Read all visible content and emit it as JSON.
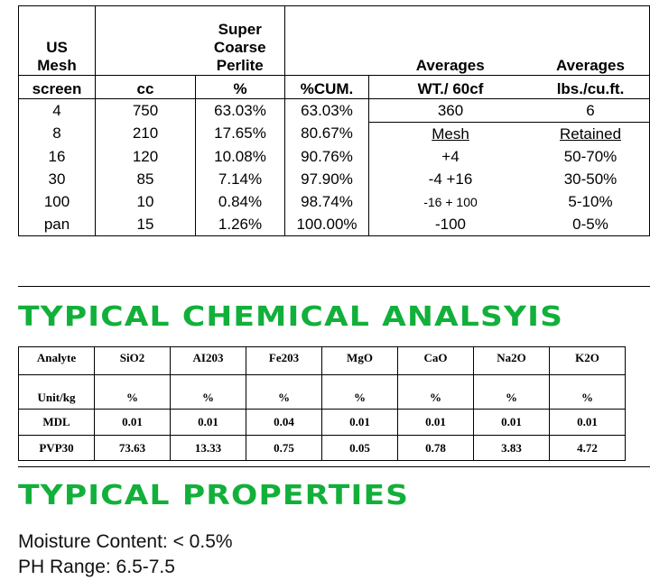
{
  "sieve_table": {
    "header_row1": [
      "US\nMesh",
      "",
      "Super\nCoarse\nPerlite",
      "",
      "Averages",
      "Averages"
    ],
    "header_row2": [
      "screen",
      "cc",
      "%",
      "%CUM.",
      "WT./ 60cf",
      "lbs./cu.ft."
    ],
    "rows": [
      [
        "4",
        "750",
        "63.03%",
        "63.03%",
        "360",
        "6"
      ],
      [
        "8",
        "210",
        "17.65%",
        "80.67%",
        "Mesh",
        "Retained"
      ],
      [
        "16",
        "120",
        "10.08%",
        "90.76%",
        "+4",
        "50-70%"
      ],
      [
        "30",
        "85",
        "7.14%",
        "97.90%",
        "-4 +16",
        "30-50%"
      ],
      [
        "100",
        "10",
        "0.84%",
        "98.74%",
        "-16 + 100",
        "5-10%"
      ],
      [
        "pan",
        "15",
        "1.26%",
        "100.00%",
        "-100",
        "0-5%"
      ]
    ]
  },
  "chemical": {
    "title": "TYPICAL CHEMICAL ANALSYIS",
    "title_color": "#12b03a",
    "headers": [
      "Analyte",
      "SiO2",
      "AI203",
      "Fe203",
      "MgO",
      "CaO",
      "Na2O",
      "K2O"
    ],
    "rows": [
      [
        "Unit/kg",
        "%",
        "%",
        "%",
        "%",
        "%",
        "%",
        "%"
      ],
      [
        "MDL",
        "0.01",
        "0.01",
        "0.04",
        "0.01",
        "0.01",
        "0.01",
        "0.01"
      ],
      [
        "PVP30",
        "73.63",
        "13.33",
        "0.75",
        "0.05",
        "0.78",
        "3.83",
        "4.72"
      ]
    ]
  },
  "properties": {
    "title": "TYPICAL PROPERTIES",
    "items": [
      "Moisture Content: < 0.5%",
      "PH Range: 6.5-7.5"
    ]
  }
}
